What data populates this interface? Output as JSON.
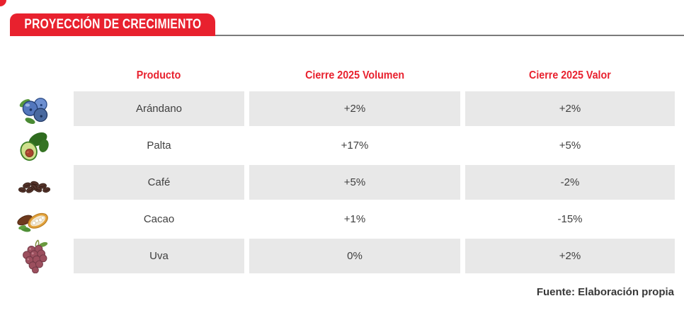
{
  "banner": {
    "title": "PROYECCIÓN DE CRECIMIENTO"
  },
  "table": {
    "columns": [
      "Producto",
      "Cierre 2025 Volumen",
      "Cierre 2025 Valor"
    ],
    "rows": [
      {
        "icon": "blueberry-icon",
        "producto": "Arándano",
        "volumen": "+2%",
        "valor": "+2%"
      },
      {
        "icon": "avocado-icon",
        "producto": "Palta",
        "volumen": "+17%",
        "valor": "+5%"
      },
      {
        "icon": "coffee-icon",
        "producto": "Café",
        "volumen": "+5%",
        "valor": "-2%"
      },
      {
        "icon": "cacao-icon",
        "producto": "Cacao",
        "volumen": "+1%",
        "valor": "-15%"
      },
      {
        "icon": "grapes-icon",
        "producto": "Uva",
        "volumen": "0%",
        "valor": "+2%"
      }
    ]
  },
  "footer": {
    "source": "Fuente: Elaboración propia"
  },
  "colors": {
    "accent_red": "#e8212e",
    "cell_gray": "#e8e8e8",
    "text_dark": "#3f3f3f",
    "line_gray": "#7b7b7b"
  },
  "chart_data": {
    "type": "table",
    "title": "PROYECCIÓN DE CRECIMIENTO",
    "columns": [
      "Producto",
      "Cierre 2025 Volumen",
      "Cierre 2025 Valor"
    ],
    "rows": [
      [
        "Arándano",
        "+2%",
        "+2%"
      ],
      [
        "Palta",
        "+17%",
        "+5%"
      ],
      [
        "Café",
        "+5%",
        "-2%"
      ],
      [
        "Cacao",
        "+1%",
        "-15%"
      ],
      [
        "Uva",
        "0%",
        "+2%"
      ]
    ],
    "source_note": "Fuente: Elaboración propia",
    "layout": {
      "striped_rows": "odd rows gray",
      "header_color": "#e8212e"
    }
  }
}
